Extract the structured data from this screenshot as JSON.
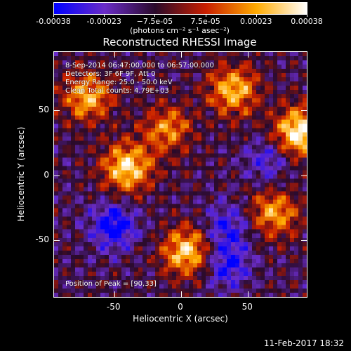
{
  "colorbar": {
    "ticks": [
      "-0.00038",
      "-0.00023",
      "−7.5e-05",
      "7.5e-05",
      "0.00023",
      "0.00038"
    ],
    "units": "(photons cm⁻² s⁻¹ asec⁻²)",
    "colors": [
      "#0000ff",
      "#6a2cc8",
      "#2a0a2a",
      "#c81e00",
      "#ffaa00",
      "#ffffff"
    ]
  },
  "title": "Reconstructed RHESSI Image",
  "info": {
    "line1": "8-Sep-2014 06:47:00.000 to 06:57:00.000",
    "line2": "Detectors: 3F 6F 9F, Att 0",
    "line3": "Energy Range: 25.0 - 50.0 keV",
    "line4": "Clean     Total counts: 4.79E+03",
    "peak": "Position of Peak = [90,33]"
  },
  "chart_data": {
    "type": "heatmap",
    "title": "Reconstructed RHESSI Image",
    "xlabel": "Heliocentric X (arcsec)",
    "ylabel": "Heliocentric Y (arcsec)",
    "xlim": [
      -95,
      95
    ],
    "ylim": [
      -95,
      95
    ],
    "xticks": [
      -50,
      0,
      50
    ],
    "yticks": [
      50,
      0,
      -50
    ],
    "clim": [
      -0.00038,
      0.00038
    ],
    "sources": [
      {
        "x": 90,
        "y": 33,
        "value": 0.00038
      },
      {
        "x": -40,
        "y": 5,
        "value": 0.00032
      },
      {
        "x": 5,
        "y": -60,
        "value": 0.0003
      },
      {
        "x": -70,
        "y": 60,
        "value": 0.00024
      },
      {
        "x": 40,
        "y": 65,
        "value": 0.00026
      },
      {
        "x": 70,
        "y": -30,
        "value": 0.00022
      },
      {
        "x": -10,
        "y": 35,
        "value": 0.00018
      }
    ],
    "sinks": [
      {
        "x": -50,
        "y": -40,
        "value": -0.0003
      },
      {
        "x": 35,
        "y": -70,
        "value": -0.00026
      },
      {
        "x": 35,
        "y": -40,
        "value": -0.00022
      },
      {
        "x": 65,
        "y": 10,
        "value": -0.00018
      }
    ]
  },
  "timestamp": "11-Feb-2017 18:32"
}
